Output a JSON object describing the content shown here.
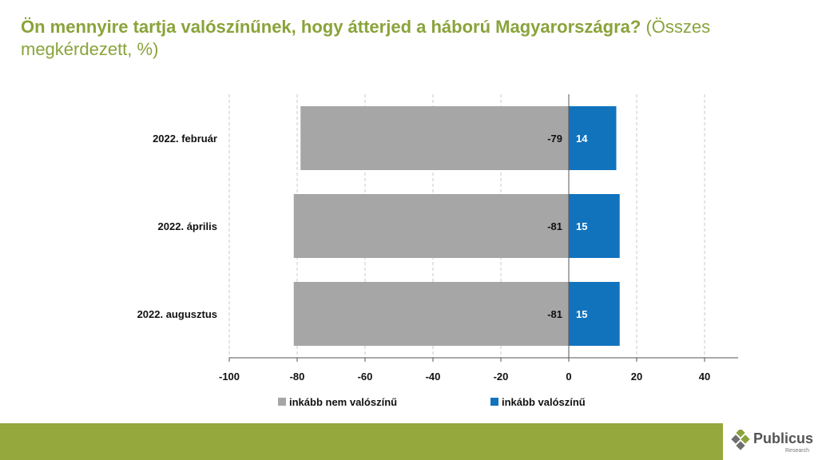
{
  "title_main": "Ön mennyire tartja valószínűnek, hogy átterjed a háború Magyarországra?",
  "title_sub": "(Összes megkérdezett, %)",
  "chart_data": {
    "type": "bar",
    "orientation": "horizontal",
    "stacked": true,
    "categories": [
      "2022. február",
      "2022. április",
      "2022. augusztus"
    ],
    "series": [
      {
        "name": "inkább nem valószínű",
        "values": [
          -79,
          -81,
          -81
        ],
        "color": "#a6a6a6"
      },
      {
        "name": "inkább valószínű",
        "values": [
          14,
          15,
          15
        ],
        "color": "#1273bd"
      }
    ],
    "xlim": [
      -100,
      40
    ],
    "xticks": [
      -100,
      -80,
      -60,
      -40,
      -20,
      0,
      20,
      40
    ],
    "grid": true,
    "legend": "bottom"
  },
  "logo": {
    "name": "Publicus",
    "sub": "Research"
  }
}
